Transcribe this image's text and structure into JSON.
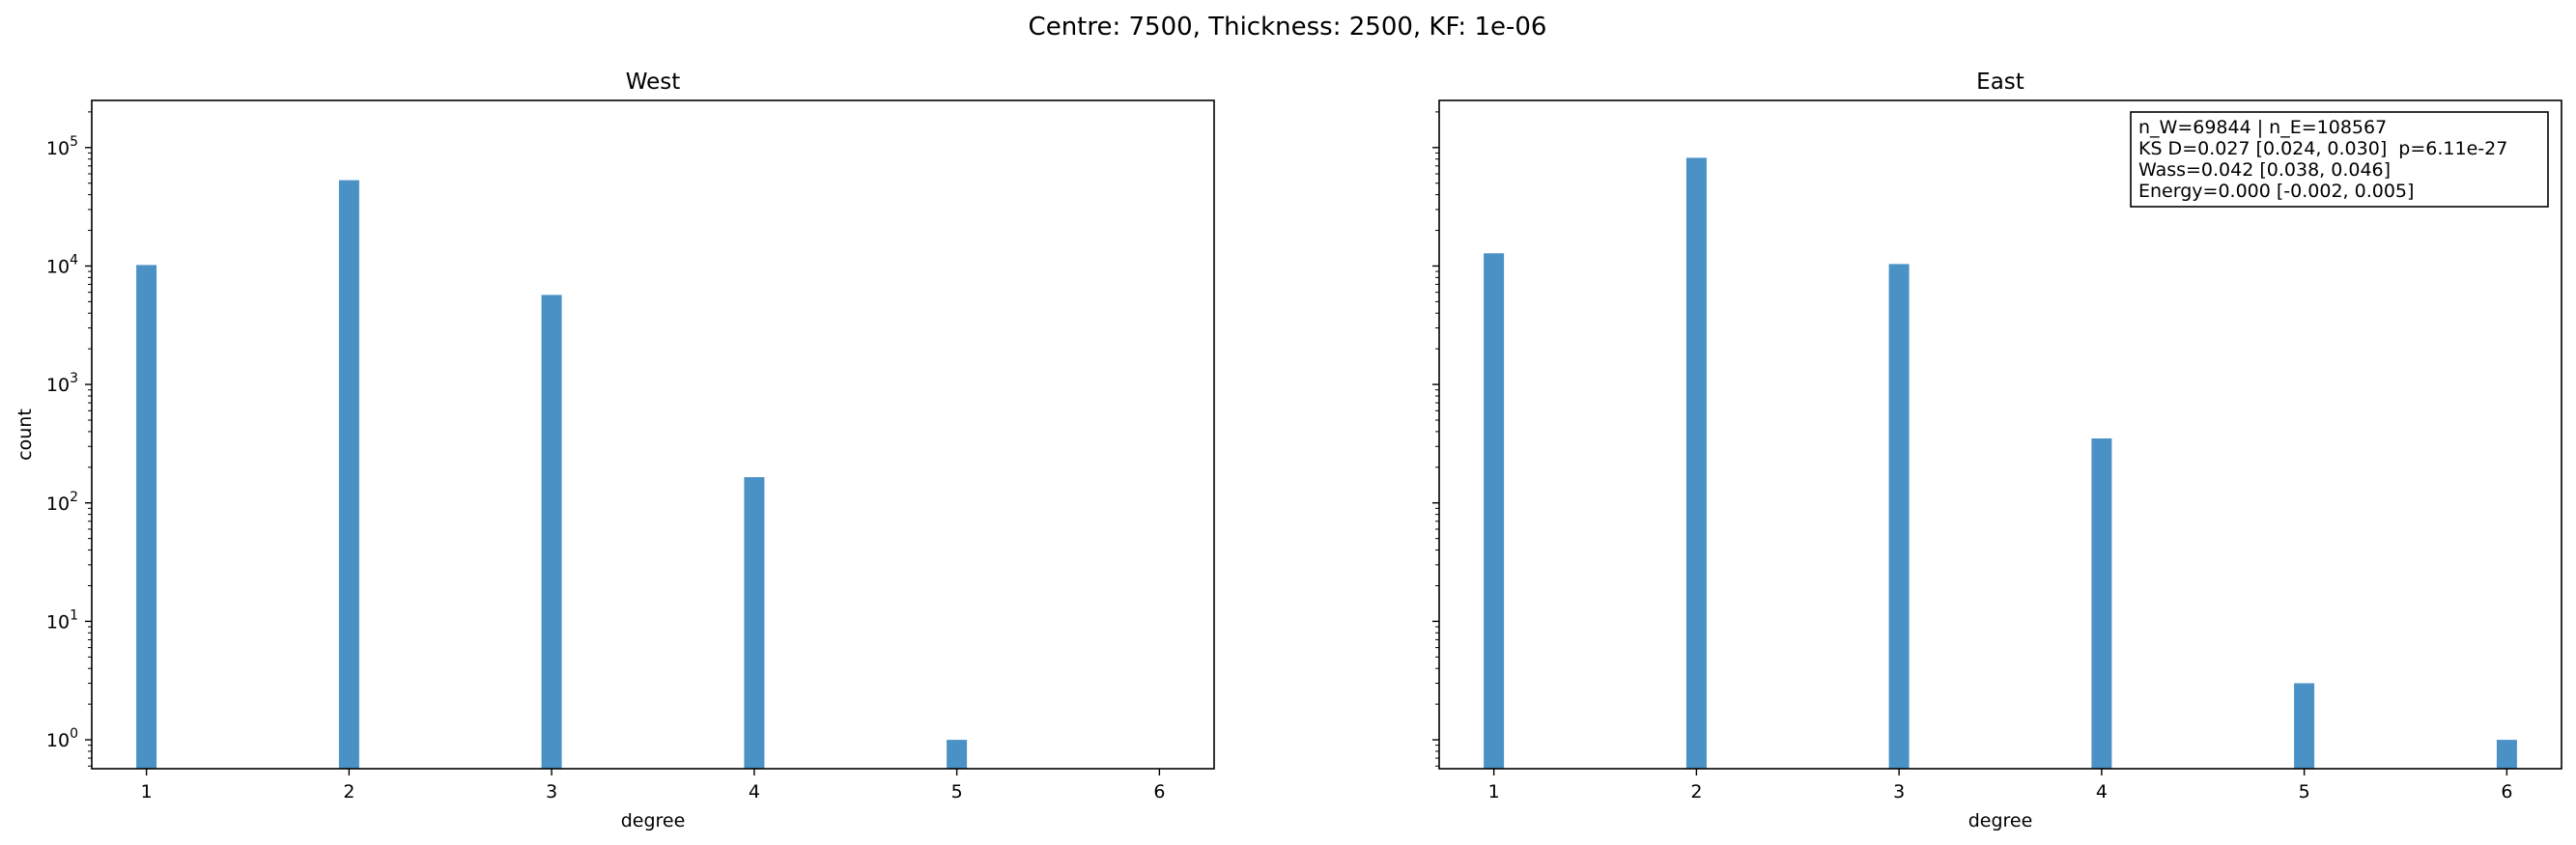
{
  "suptitle": "Centre: 7500, Thickness: 2500, KF: 1e-06",
  "colors": {
    "bar": "#4a92c6",
    "axes": "#000000",
    "background": "#ffffff"
  },
  "chart_data": [
    {
      "type": "bar",
      "title": "West",
      "xlabel": "degree",
      "ylabel": "count",
      "yscale": "log",
      "ylim": [
        0.57,
        250000
      ],
      "xlim": [
        0.73,
        6.27
      ],
      "xticks": [
        1,
        2,
        3,
        4,
        5,
        6
      ],
      "yticks": [
        1,
        10,
        100,
        1000,
        10000,
        100000
      ],
      "ytick_labels": [
        {
          "base": "10",
          "exp": "0"
        },
        {
          "base": "10",
          "exp": "1"
        },
        {
          "base": "10",
          "exp": "2"
        },
        {
          "base": "10",
          "exp": "3"
        },
        {
          "base": "10",
          "exp": "4"
        },
        {
          "base": "10",
          "exp": "5"
        }
      ],
      "bars": [
        {
          "x": 1,
          "count": 10200
        },
        {
          "x": 2,
          "count": 53000
        },
        {
          "x": 3,
          "count": 5700
        },
        {
          "x": 4,
          "count": 165
        },
        {
          "x": 5,
          "count": 1
        }
      ],
      "annotation": null
    },
    {
      "type": "bar",
      "title": "East",
      "xlabel": "degree",
      "ylabel": "",
      "yscale": "log",
      "ylim": [
        0.57,
        250000
      ],
      "xlim": [
        0.73,
        6.27
      ],
      "xticks": [
        1,
        2,
        3,
        4,
        5,
        6
      ],
      "yticks": [
        1,
        10,
        100,
        1000,
        10000,
        100000
      ],
      "ytick_labels": [],
      "bars": [
        {
          "x": 1,
          "count": 12800
        },
        {
          "x": 2,
          "count": 82000
        },
        {
          "x": 3,
          "count": 10400
        },
        {
          "x": 4,
          "count": 350
        },
        {
          "x": 5,
          "count": 3
        },
        {
          "x": 6,
          "count": 1
        }
      ],
      "annotation": [
        "n_W=69844 | n_E=108567",
        "KS D=0.027 [0.024, 0.030]  p=6.11e-27",
        "Wass=0.042 [0.038, 0.046]",
        "Energy=0.000 [-0.002, 0.005]"
      ]
    }
  ]
}
